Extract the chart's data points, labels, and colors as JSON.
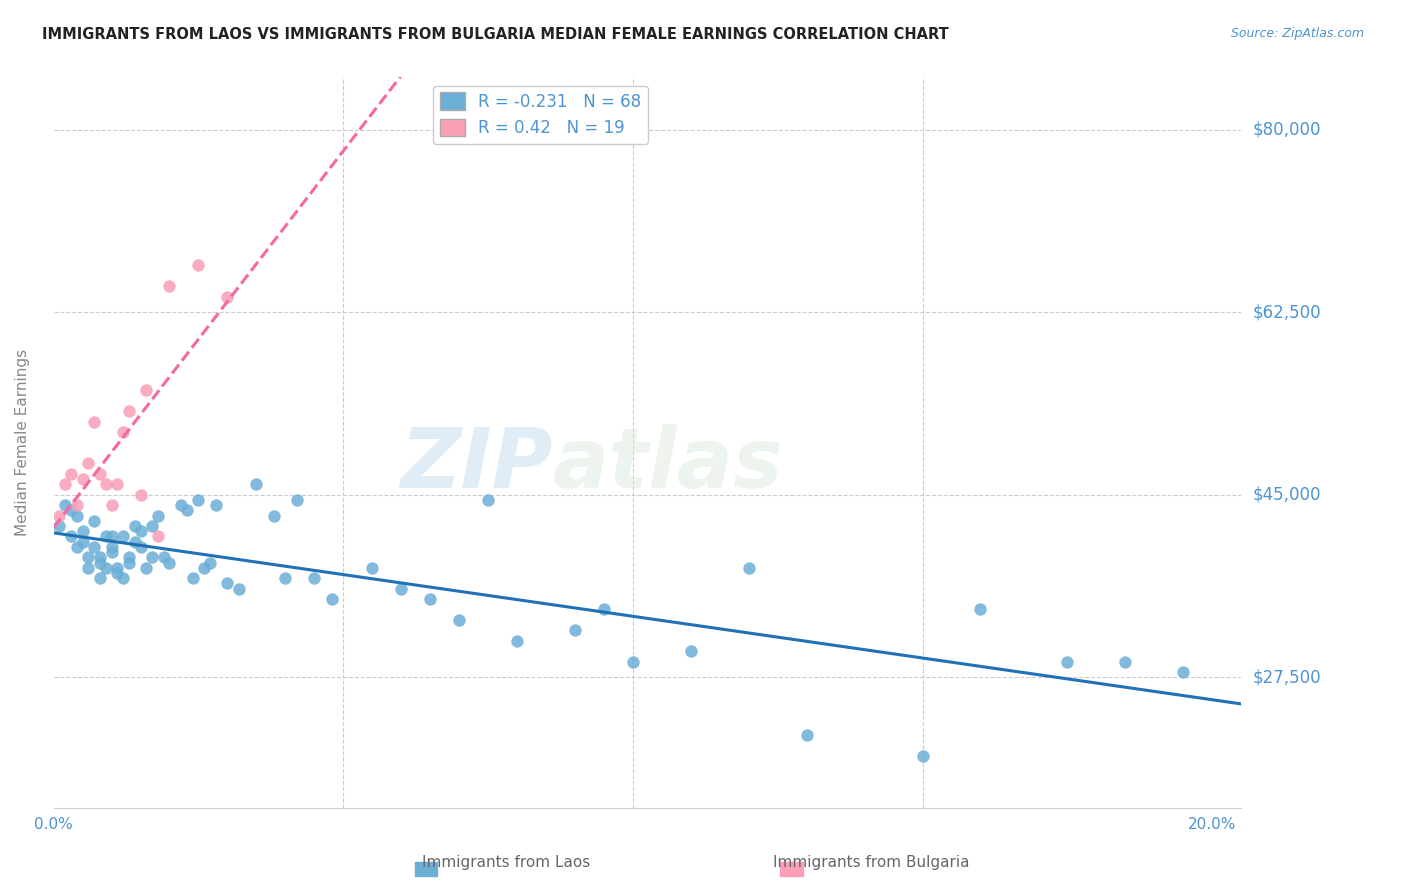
{
  "title": "IMMIGRANTS FROM LAOS VS IMMIGRANTS FROM BULGARIA MEDIAN FEMALE EARNINGS CORRELATION CHART",
  "source": "Source: ZipAtlas.com",
  "ylabel": "Median Female Earnings",
  "yticks": [
    27500,
    45000,
    62500,
    80000
  ],
  "ytick_labels": [
    "$27,500",
    "$45,000",
    "$62,500",
    "$80,000"
  ],
  "xlim": [
    0.0,
    0.205
  ],
  "ylim": [
    15000,
    85000
  ],
  "legend_label_blue": "Immigrants from Laos",
  "legend_label_pink": "Immigrants from Bulgaria",
  "R_blue": -0.231,
  "N_blue": 68,
  "R_pink": 0.42,
  "N_pink": 19,
  "color_blue": "#6baed6",
  "color_pink": "#fa9fb5",
  "color_trendline_blue": "#2171b5",
  "color_trendline_pink": "#f768a1",
  "watermark_zip": "ZIP",
  "watermark_atlas": "atlas",
  "background_color": "#ffffff",
  "title_color": "#222222",
  "axis_label_color": "#4d94d4",
  "laos_x": [
    0.001,
    0.002,
    0.003,
    0.003,
    0.004,
    0.004,
    0.005,
    0.005,
    0.006,
    0.006,
    0.007,
    0.007,
    0.008,
    0.008,
    0.008,
    0.009,
    0.009,
    0.01,
    0.01,
    0.01,
    0.011,
    0.011,
    0.012,
    0.012,
    0.013,
    0.013,
    0.014,
    0.014,
    0.015,
    0.015,
    0.016,
    0.017,
    0.017,
    0.018,
    0.019,
    0.02,
    0.022,
    0.023,
    0.024,
    0.025,
    0.026,
    0.027,
    0.028,
    0.03,
    0.032,
    0.035,
    0.038,
    0.04,
    0.042,
    0.045,
    0.048,
    0.055,
    0.06,
    0.065,
    0.07,
    0.075,
    0.08,
    0.09,
    0.095,
    0.1,
    0.11,
    0.12,
    0.13,
    0.15,
    0.16,
    0.175,
    0.185,
    0.195
  ],
  "laos_y": [
    42000,
    44000,
    43500,
    41000,
    40000,
    43000,
    41500,
    40500,
    39000,
    38000,
    42500,
    40000,
    38500,
    37000,
    39000,
    38000,
    41000,
    40000,
    39500,
    41000,
    38000,
    37500,
    37000,
    41000,
    39000,
    38500,
    42000,
    40500,
    41500,
    40000,
    38000,
    39000,
    42000,
    43000,
    39000,
    38500,
    44000,
    43500,
    37000,
    44500,
    38000,
    38500,
    44000,
    36500,
    36000,
    46000,
    43000,
    37000,
    44500,
    37000,
    35000,
    38000,
    36000,
    35000,
    33000,
    44500,
    31000,
    32000,
    34000,
    29000,
    30000,
    38000,
    22000,
    20000,
    34000,
    29000,
    29000,
    28000
  ],
  "bulgaria_x": [
    0.001,
    0.002,
    0.003,
    0.004,
    0.005,
    0.006,
    0.007,
    0.008,
    0.009,
    0.01,
    0.011,
    0.012,
    0.013,
    0.015,
    0.016,
    0.018,
    0.02,
    0.025,
    0.03
  ],
  "bulgaria_y": [
    43000,
    46000,
    47000,
    44000,
    46500,
    48000,
    52000,
    47000,
    46000,
    44000,
    46000,
    51000,
    53000,
    45000,
    55000,
    41000,
    65000,
    67000,
    64000
  ]
}
